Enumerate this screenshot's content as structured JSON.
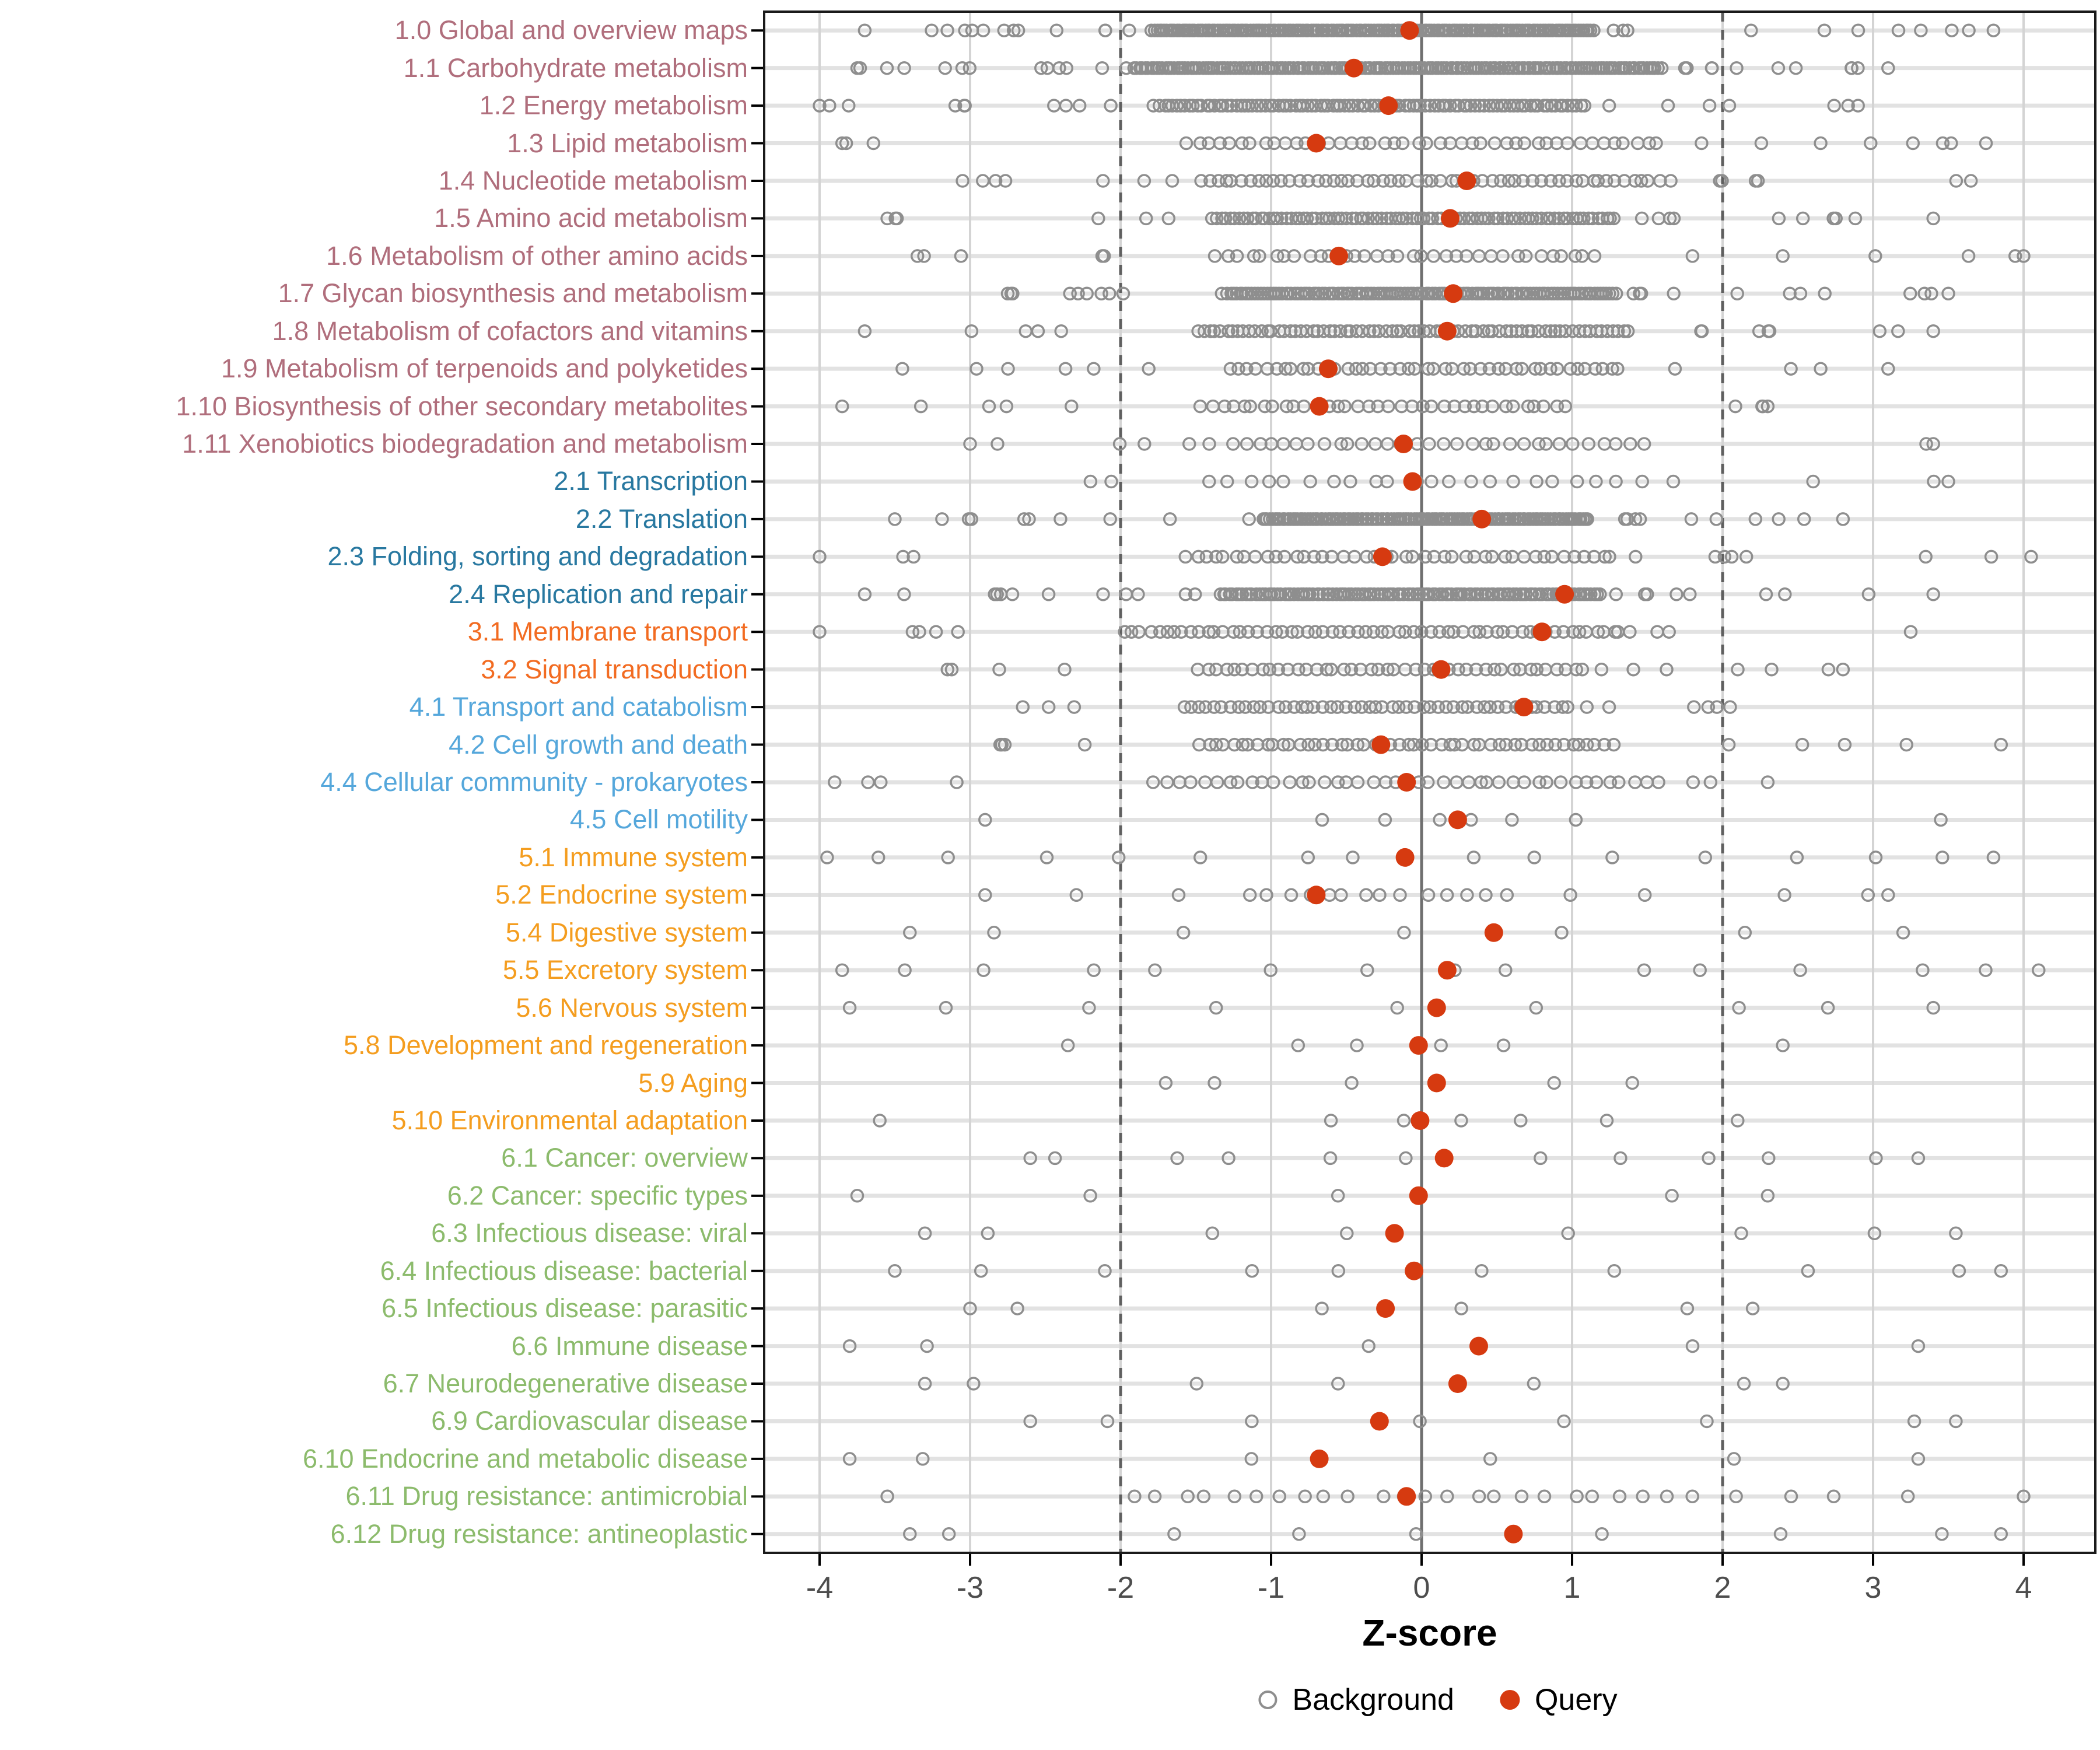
{
  "chart_data": {
    "type": "scatter",
    "title": "",
    "xlabel": "Z-score",
    "xlim": [
      -4.37,
      4.48
    ],
    "x_ticks": [
      -4,
      -3,
      -2,
      -1,
      0,
      1,
      2,
      3,
      4
    ],
    "reference_lines": {
      "solid_x": 0,
      "dashed_x": [
        -2,
        2
      ]
    },
    "grid": true,
    "legend_position": "bottom",
    "colors": {
      "query": "#D63A10",
      "background_stroke": "#8E8E8E",
      "grid_horizontal": "#E2E2E2",
      "grid_vertical": "#D4D4D4",
      "zero_line": "#6F6F6F",
      "threshold_line": "#5F5F5F",
      "panel_border": "#1A1A1A",
      "tick_label": "#4D4D4D"
    },
    "group_colors": {
      "g1": "#B06E7C",
      "g2": "#2878A0",
      "g3": "#F26B21",
      "g4": "#55A7DB",
      "g5": "#F49D1F",
      "g6": "#8CBB6C"
    },
    "rows": [
      {
        "label": "1.0 Global and overview maps",
        "group": "g1",
        "query_z": -0.08,
        "bg": {
          "n": 200,
          "min": -3.7,
          "max": 3.8,
          "dmin": -1.8,
          "dmax": 1.15,
          "df": 0.88
        }
      },
      {
        "label": "1.1 Carbohydrate metabolism",
        "group": "g1",
        "query_z": -0.45,
        "bg": {
          "n": 210,
          "min": -3.75,
          "max": 3.1,
          "dmin": -1.9,
          "dmax": 1.6,
          "df": 0.88
        }
      },
      {
        "label": "1.2 Energy metabolism",
        "group": "g1",
        "query_z": -0.22,
        "bg": {
          "n": 120,
          "min": -4.0,
          "max": 2.9,
          "dmin": -1.75,
          "dmax": 1.1,
          "df": 0.85
        }
      },
      {
        "label": "1.3 Lipid metabolism",
        "group": "g1",
        "query_z": -0.7,
        "bg": {
          "n": 55,
          "min": -3.85,
          "max": 3.75,
          "dmin": -1.6,
          "dmax": 1.6,
          "df": 0.8
        }
      },
      {
        "label": "1.4 Nucleotide metabolism",
        "group": "g1",
        "query_z": 0.3,
        "bg": {
          "n": 70,
          "min": -3.05,
          "max": 3.65,
          "dmin": -1.5,
          "dmax": 1.6,
          "df": 0.8
        }
      },
      {
        "label": "1.5 Amino acid metabolism",
        "group": "g1",
        "query_z": 0.19,
        "bg": {
          "n": 110,
          "min": -3.55,
          "max": 3.4,
          "dmin": -1.4,
          "dmax": 1.3,
          "df": 0.85
        }
      },
      {
        "label": "1.6 Metabolism of other amino acids",
        "group": "g1",
        "query_z": -0.55,
        "bg": {
          "n": 45,
          "min": -3.35,
          "max": 4.0,
          "dmin": -1.4,
          "dmax": 1.2,
          "df": 0.75
        }
      },
      {
        "label": "1.7 Glycan biosynthesis and metabolism",
        "group": "g1",
        "query_z": 0.21,
        "bg": {
          "n": 150,
          "min": -2.75,
          "max": 3.5,
          "dmin": -1.3,
          "dmax": 1.3,
          "df": 0.85
        }
      },
      {
        "label": "1.8 Metabolism of cofactors and vitamins",
        "group": "g1",
        "query_z": 0.17,
        "bg": {
          "n": 90,
          "min": -3.7,
          "max": 3.4,
          "dmin": -1.5,
          "dmax": 1.4,
          "df": 0.85
        }
      },
      {
        "label": "1.9 Metabolism of terpenoids and polyketides",
        "group": "g1",
        "query_z": -0.62,
        "bg": {
          "n": 55,
          "min": -3.45,
          "max": 3.1,
          "dmin": -1.3,
          "dmax": 1.3,
          "df": 0.8
        }
      },
      {
        "label": "1.10 Biosynthesis of other secondary metabolites",
        "group": "g1",
        "query_z": -0.68,
        "bg": {
          "n": 45,
          "min": -3.85,
          "max": 2.3,
          "dmin": -1.5,
          "dmax": 1.0,
          "df": 0.8
        }
      },
      {
        "label": "1.11 Xenobiotics biodegradation and metabolism",
        "group": "g1",
        "query_z": -0.12,
        "bg": {
          "n": 40,
          "min": -3.0,
          "max": 3.4,
          "dmin": -1.3,
          "dmax": 1.5,
          "df": 0.8
        }
      },
      {
        "label": "2.1 Transcription",
        "group": "g2",
        "query_z": -0.06,
        "bg": {
          "n": 28,
          "min": -2.2,
          "max": 3.5,
          "dmin": -1.5,
          "dmax": 1.5,
          "df": 0.8
        }
      },
      {
        "label": "2.2 Translation",
        "group": "g2",
        "query_z": 0.4,
        "bg": {
          "n": 150,
          "min": -3.5,
          "max": 2.8,
          "dmin": -1.05,
          "dmax": 1.1,
          "df": 0.85
        }
      },
      {
        "label": "2.3 Folding, sorting and degradation",
        "group": "g2",
        "query_z": -0.26,
        "bg": {
          "n": 55,
          "min": -4.0,
          "max": 4.05,
          "dmin": -1.6,
          "dmax": 1.3,
          "df": 0.8
        }
      },
      {
        "label": "2.4 Replication and repair",
        "group": "g2",
        "query_z": 0.95,
        "bg": {
          "n": 140,
          "min": -3.7,
          "max": 3.4,
          "dmin": -1.35,
          "dmax": 1.2,
          "df": 0.85
        }
      },
      {
        "label": "3.1 Membrane transport",
        "group": "g3",
        "query_z": 0.8,
        "bg": {
          "n": 70,
          "min": -4.0,
          "max": 3.25,
          "dmin": -2.0,
          "dmax": 1.3,
          "df": 0.85
        }
      },
      {
        "label": "3.2 Signal transduction",
        "group": "g3",
        "query_z": 0.13,
        "bg": {
          "n": 55,
          "min": -3.15,
          "max": 2.8,
          "dmin": -1.5,
          "dmax": 1.1,
          "df": 0.8
        }
      },
      {
        "label": "4.1 Transport and catabolism",
        "group": "g4",
        "query_z": 0.68,
        "bg": {
          "n": 60,
          "min": -2.65,
          "max": 2.05,
          "dmin": -1.6,
          "dmax": 1.0,
          "df": 0.85
        }
      },
      {
        "label": "4.2 Cell growth and death",
        "group": "g4",
        "query_z": -0.27,
        "bg": {
          "n": 60,
          "min": -2.8,
          "max": 3.85,
          "dmin": -1.5,
          "dmax": 1.3,
          "df": 0.85
        }
      },
      {
        "label": "4.4 Cellular community - prokaryotes",
        "group": "g4",
        "query_z": -0.1,
        "bg": {
          "n": 50,
          "min": -3.9,
          "max": 2.3,
          "dmin": -1.8,
          "dmax": 1.6,
          "df": 0.85
        }
      },
      {
        "label": "4.5 Cell motility",
        "group": "g4",
        "query_z": 0.24,
        "bg": {
          "n": 8,
          "min": -2.9,
          "max": 3.45,
          "dmin": -0.8,
          "dmax": 1.2,
          "df": 0.7
        }
      },
      {
        "label": "5.1 Immune system",
        "group": "g5",
        "query_z": -0.11,
        "bg": {
          "n": 16,
          "min": -3.95,
          "max": 3.8,
          "dmin": -3.95,
          "dmax": 3.8,
          "df": 1
        }
      },
      {
        "label": "5.2 Endocrine system",
        "group": "g5",
        "query_z": -0.7,
        "bg": {
          "n": 22,
          "min": -2.9,
          "max": 3.1,
          "dmin": -1.1,
          "dmax": 0.6,
          "df": 0.6
        }
      },
      {
        "label": "5.4 Digestive system",
        "group": "g5",
        "query_z": 0.48,
        "bg": {
          "n": 7,
          "min": -3.4,
          "max": 3.2,
          "dmin": -3.4,
          "dmax": 3.2,
          "df": 1
        }
      },
      {
        "label": "5.5 Excretory system",
        "group": "g5",
        "query_z": 0.17,
        "bg": {
          "n": 15,
          "min": -3.85,
          "max": 4.1,
          "dmin": -3.85,
          "dmax": 4.1,
          "df": 1
        }
      },
      {
        "label": "5.6 Nervous system",
        "group": "g5",
        "query_z": 0.1,
        "bg": {
          "n": 9,
          "min": -3.8,
          "max": 3.4,
          "dmin": -3.8,
          "dmax": 3.4,
          "df": 1
        }
      },
      {
        "label": "5.8 Development and regeneration",
        "group": "g5",
        "query_z": -0.02,
        "bg": {
          "n": 6,
          "min": -2.35,
          "max": 2.4,
          "dmin": -1.05,
          "dmax": 0.65,
          "df": 0.67
        }
      },
      {
        "label": "5.9 Aging",
        "group": "g5",
        "query_z": 0.1,
        "bg": {
          "n": 6,
          "min": -1.7,
          "max": 1.4,
          "dmin": -1.7,
          "dmax": 1.4,
          "df": 1
        }
      },
      {
        "label": "5.10 Environmental adaptation",
        "group": "g5",
        "query_z": -0.01,
        "bg": {
          "n": 7,
          "min": -3.6,
          "max": 2.1,
          "dmin": -1.0,
          "dmax": 1.0,
          "df": 0.6
        }
      },
      {
        "label": "6.1 Cancer: overview",
        "group": "g6",
        "query_z": 0.15,
        "bg": {
          "n": 12,
          "min": -2.6,
          "max": 3.3,
          "dmin": -2.6,
          "dmax": 3.3,
          "df": 1
        }
      },
      {
        "label": "6.2 Cancer: specific types",
        "group": "g6",
        "query_z": -0.02,
        "bg": {
          "n": 5,
          "min": -3.75,
          "max": 2.3,
          "dmin": -3.75,
          "dmax": 2.3,
          "df": 1
        }
      },
      {
        "label": "6.3 Infectious disease: viral",
        "group": "g6",
        "query_z": -0.18,
        "bg": {
          "n": 8,
          "min": -3.3,
          "max": 3.55,
          "dmin": -3.3,
          "dmax": 3.55,
          "df": 1
        }
      },
      {
        "label": "6.4 Infectious disease: bacterial",
        "group": "g6",
        "query_z": -0.05,
        "bg": {
          "n": 10,
          "min": -3.5,
          "max": 3.85,
          "dmin": -3.5,
          "dmax": 3.85,
          "df": 1
        }
      },
      {
        "label": "6.5 Infectious disease: parasitic",
        "group": "g6",
        "query_z": -0.24,
        "bg": {
          "n": 6,
          "min": -3.0,
          "max": 2.2,
          "dmin": -3.0,
          "dmax": 2.2,
          "df": 1
        }
      },
      {
        "label": "6.6 Immune disease",
        "group": "g6",
        "query_z": 0.38,
        "bg": {
          "n": 5,
          "min": -3.8,
          "max": 3.3,
          "dmin": -3.8,
          "dmax": 3.3,
          "df": 1
        }
      },
      {
        "label": "6.7 Neurodegenerative disease",
        "group": "g6",
        "query_z": 0.24,
        "bg": {
          "n": 7,
          "min": -3.3,
          "max": 2.4,
          "dmin": -3.3,
          "dmax": 2.4,
          "df": 1
        }
      },
      {
        "label": "6.9 Cardiovascular disease",
        "group": "g6",
        "query_z": -0.28,
        "bg": {
          "n": 8,
          "min": -2.6,
          "max": 3.55,
          "dmin": -2.6,
          "dmax": 3.55,
          "df": 1
        }
      },
      {
        "label": "6.10 Endocrine and metabolic disease",
        "group": "g6",
        "query_z": -0.68,
        "bg": {
          "n": 6,
          "min": -3.8,
          "max": 3.3,
          "dmin": -3.8,
          "dmax": 3.3,
          "df": 1
        }
      },
      {
        "label": "6.11 Drug resistance: antimicrobial",
        "group": "g6",
        "query_z": -0.1,
        "bg": {
          "n": 30,
          "min": -3.55,
          "max": 4.0,
          "dmin": -2.0,
          "dmax": 1.9,
          "df": 0.8
        }
      },
      {
        "label": "6.12 Drug resistance: antineoplastic",
        "group": "g6",
        "query_z": 0.61,
        "bg": {
          "n": 9,
          "min": -3.4,
          "max": 3.85,
          "dmin": -3.4,
          "dmax": 3.85,
          "df": 1
        }
      }
    ]
  },
  "axis": {
    "xlabel": "Z-score"
  },
  "legend": {
    "background_label": "Background",
    "query_label": "Query"
  }
}
